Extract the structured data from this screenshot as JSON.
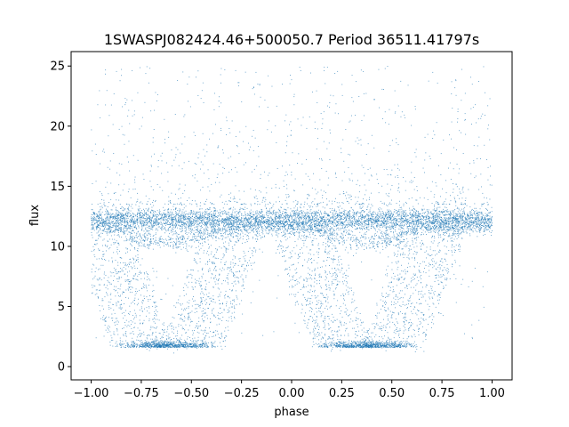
{
  "chart_data": {
    "type": "scatter",
    "title": "1SWASPJ082424.46+500050.7 Period 36511.41797s",
    "xlabel": "phase",
    "ylabel": "flux",
    "xlim": [
      -1.1,
      1.1
    ],
    "ylim": [
      -1.1,
      26.2
    ],
    "x_ticks": [
      -1.0,
      -0.75,
      -0.5,
      -0.25,
      0.0,
      0.25,
      0.5,
      0.75,
      1.0
    ],
    "x_tick_labels": [
      "−1.00",
      "−0.75",
      "−0.50",
      "−0.25",
      "0.00",
      "0.25",
      "0.50",
      "0.75",
      "1.00"
    ],
    "y_ticks": [
      0,
      5,
      10,
      15,
      20,
      25
    ],
    "y_tick_labels": [
      "0",
      "5",
      "10",
      "15",
      "20",
      "25"
    ],
    "grid": false,
    "point_color": "#1f77b4",
    "baseline_flux": 12.2,
    "baseline_spread": 0.9,
    "eclipse_minimum_flux": 1.6,
    "eclipse_center_phases": [
      -0.62,
      0.38
    ],
    "secondary_dip_flux": 10.6,
    "secondary_dip_phases": [
      -0.12,
      0.88
    ],
    "outlier_range": [
      13.5,
      25
    ]
  }
}
